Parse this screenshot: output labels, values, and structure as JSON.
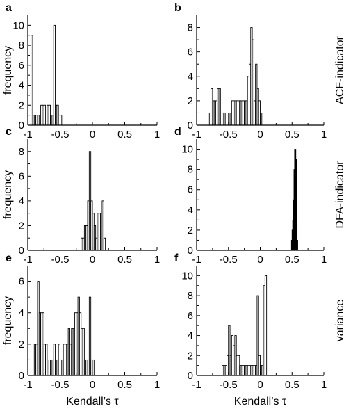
{
  "chart_data": [
    {
      "id": "a",
      "letter": "a",
      "type": "bar",
      "style": "outline",
      "xlim": [
        -1,
        1
      ],
      "ylim": [
        0,
        11
      ],
      "xticks": [
        "-1",
        "-0.5",
        "0",
        "0.5",
        "1"
      ],
      "yticks": [
        0,
        2,
        4,
        6,
        8,
        10
      ],
      "ylabel": "frequency",
      "xlabel": "",
      "row_label": "",
      "bin_width": 0.025,
      "bins": [
        {
          "x": -0.95,
          "h": 9
        },
        {
          "x": -0.925,
          "h": 1
        },
        {
          "x": -0.9,
          "h": 1
        },
        {
          "x": -0.875,
          "h": 1
        },
        {
          "x": -0.85,
          "h": 1
        },
        {
          "x": -0.8,
          "h": 2
        },
        {
          "x": -0.775,
          "h": 2
        },
        {
          "x": -0.75,
          "h": 2
        },
        {
          "x": -0.7,
          "h": 2
        },
        {
          "x": -0.675,
          "h": 2
        },
        {
          "x": -0.65,
          "h": 1
        },
        {
          "x": -0.625,
          "h": 1
        },
        {
          "x": -0.6,
          "h": 10
        },
        {
          "x": -0.575,
          "h": 2
        },
        {
          "x": -0.55,
          "h": 2
        },
        {
          "x": -0.525,
          "h": 1
        },
        {
          "x": -0.5,
          "h": 1
        }
      ]
    },
    {
      "id": "b",
      "letter": "b",
      "type": "bar",
      "style": "outline",
      "xlim": [
        -1,
        1
      ],
      "ylim": [
        0,
        9
      ],
      "xticks": [
        "-1",
        "-0.5",
        "0",
        "0.5",
        "1"
      ],
      "yticks": [
        0,
        2,
        4,
        6,
        8
      ],
      "ylabel": "",
      "xlabel": "",
      "row_label": "ACF-indicator",
      "bin_width": 0.025,
      "bins": [
        {
          "x": -0.8,
          "h": 1
        },
        {
          "x": -0.775,
          "h": 3
        },
        {
          "x": -0.75,
          "h": 2
        },
        {
          "x": -0.725,
          "h": 2
        },
        {
          "x": -0.7,
          "h": 2
        },
        {
          "x": -0.675,
          "h": 3
        },
        {
          "x": -0.65,
          "h": 3
        },
        {
          "x": -0.625,
          "h": 1
        },
        {
          "x": -0.6,
          "h": 1
        },
        {
          "x": -0.575,
          "h": 1
        },
        {
          "x": -0.55,
          "h": 1
        },
        {
          "x": -0.5,
          "h": 1
        },
        {
          "x": -0.45,
          "h": 2
        },
        {
          "x": -0.425,
          "h": 2
        },
        {
          "x": -0.4,
          "h": 2
        },
        {
          "x": -0.375,
          "h": 2
        },
        {
          "x": -0.35,
          "h": 2
        },
        {
          "x": -0.325,
          "h": 2
        },
        {
          "x": -0.3,
          "h": 2
        },
        {
          "x": -0.275,
          "h": 2
        },
        {
          "x": -0.25,
          "h": 2
        },
        {
          "x": -0.225,
          "h": 2
        },
        {
          "x": -0.2,
          "h": 4
        },
        {
          "x": -0.175,
          "h": 5
        },
        {
          "x": -0.15,
          "h": 8
        },
        {
          "x": -0.125,
          "h": 7
        },
        {
          "x": -0.1,
          "h": 2
        },
        {
          "x": -0.075,
          "h": 5
        },
        {
          "x": -0.05,
          "h": 3
        },
        {
          "x": -0.025,
          "h": 2
        },
        {
          "x": 0.0,
          "h": 1
        }
      ]
    },
    {
      "id": "c",
      "letter": "c",
      "type": "bar",
      "style": "outline",
      "xlim": [
        -1,
        1
      ],
      "ylim": [
        0,
        9
      ],
      "xticks": [
        "-1",
        "-0.5",
        "0",
        "0.5",
        "1"
      ],
      "yticks": [
        0,
        2,
        4,
        6,
        8
      ],
      "ylabel": "frequency",
      "xlabel": "",
      "row_label": "",
      "bin_width": 0.025,
      "bins": [
        {
          "x": -0.175,
          "h": 1
        },
        {
          "x": -0.15,
          "h": 1
        },
        {
          "x": -0.125,
          "h": 2
        },
        {
          "x": -0.1,
          "h": 2
        },
        {
          "x": -0.075,
          "h": 4
        },
        {
          "x": -0.05,
          "h": 8
        },
        {
          "x": -0.025,
          "h": 4
        },
        {
          "x": 0.0,
          "h": 3
        },
        {
          "x": 0.025,
          "h": 2
        },
        {
          "x": 0.05,
          "h": 1
        },
        {
          "x": 0.075,
          "h": 3
        },
        {
          "x": 0.1,
          "h": 3
        },
        {
          "x": 0.125,
          "h": 3
        },
        {
          "x": 0.15,
          "h": 4
        },
        {
          "x": 0.175,
          "h": 1
        }
      ]
    },
    {
      "id": "d",
      "letter": "d",
      "type": "bar",
      "style": "solid",
      "xlim": [
        -1,
        1
      ],
      "ylim": [
        0,
        11
      ],
      "xticks": [
        "-1",
        "-0.5",
        "0",
        "0.5",
        "1"
      ],
      "yticks": [
        0,
        2,
        4,
        6,
        8,
        10
      ],
      "ylabel": "",
      "xlabel": "",
      "row_label": "DFA-indicator",
      "bin_width": 0.01,
      "bins": [
        {
          "x": 0.49,
          "h": 1
        },
        {
          "x": 0.5,
          "h": 2
        },
        {
          "x": 0.51,
          "h": 3
        },
        {
          "x": 0.52,
          "h": 5
        },
        {
          "x": 0.53,
          "h": 8
        },
        {
          "x": 0.54,
          "h": 10
        },
        {
          "x": 0.55,
          "h": 10
        },
        {
          "x": 0.56,
          "h": 9
        },
        {
          "x": 0.57,
          "h": 3
        },
        {
          "x": 0.58,
          "h": 1
        }
      ]
    },
    {
      "id": "e",
      "letter": "e",
      "type": "bar",
      "style": "outline",
      "xlim": [
        -1,
        1
      ],
      "ylim": [
        0,
        7
      ],
      "xticks": [
        "-1",
        "-0.5",
        "0",
        "0.5",
        "1"
      ],
      "yticks": [
        0,
        2,
        4,
        6
      ],
      "ylabel": "frequency",
      "xlabel": "Kendall’s τ",
      "row_label": "",
      "bin_width": 0.025,
      "bins": [
        {
          "x": -0.9,
          "h": 2
        },
        {
          "x": -0.875,
          "h": 2
        },
        {
          "x": -0.85,
          "h": 6
        },
        {
          "x": -0.825,
          "h": 4
        },
        {
          "x": -0.8,
          "h": 4
        },
        {
          "x": -0.775,
          "h": 4
        },
        {
          "x": -0.75,
          "h": 2
        },
        {
          "x": -0.725,
          "h": 2
        },
        {
          "x": -0.7,
          "h": 1
        },
        {
          "x": -0.65,
          "h": 1
        },
        {
          "x": -0.6,
          "h": 2
        },
        {
          "x": -0.575,
          "h": 1
        },
        {
          "x": -0.55,
          "h": 1
        },
        {
          "x": -0.525,
          "h": 2
        },
        {
          "x": -0.5,
          "h": 1
        },
        {
          "x": -0.475,
          "h": 1
        },
        {
          "x": -0.45,
          "h": 2
        },
        {
          "x": -0.425,
          "h": 2
        },
        {
          "x": -0.4,
          "h": 2
        },
        {
          "x": -0.375,
          "h": 3
        },
        {
          "x": -0.35,
          "h": 2
        },
        {
          "x": -0.325,
          "h": 3
        },
        {
          "x": -0.3,
          "h": 3
        },
        {
          "x": -0.275,
          "h": 4
        },
        {
          "x": -0.25,
          "h": 4
        },
        {
          "x": -0.225,
          "h": 5
        },
        {
          "x": -0.2,
          "h": 4
        },
        {
          "x": -0.175,
          "h": 3
        },
        {
          "x": -0.15,
          "h": 3
        },
        {
          "x": -0.125,
          "h": 1
        },
        {
          "x": -0.1,
          "h": 1
        },
        {
          "x": -0.05,
          "h": 5
        },
        {
          "x": -0.025,
          "h": 1
        },
        {
          "x": 0.0,
          "h": 1
        }
      ]
    },
    {
      "id": "f",
      "letter": "f",
      "type": "bar",
      "style": "outline",
      "xlim": [
        -1,
        1
      ],
      "ylim": [
        0,
        11
      ],
      "xticks": [
        "-1",
        "-0.5",
        "0",
        "0.5",
        "1"
      ],
      "yticks": [
        0,
        2,
        4,
        6,
        8,
        10
      ],
      "ylabel": "",
      "xlabel": "Kendall’s τ",
      "row_label": "variance",
      "bin_width": 0.025,
      "bins": [
        {
          "x": -0.6,
          "h": 1
        },
        {
          "x": -0.575,
          "h": 1
        },
        {
          "x": -0.55,
          "h": 1
        },
        {
          "x": -0.525,
          "h": 2
        },
        {
          "x": -0.5,
          "h": 5
        },
        {
          "x": -0.475,
          "h": 2
        },
        {
          "x": -0.45,
          "h": 4
        },
        {
          "x": -0.425,
          "h": 3
        },
        {
          "x": -0.4,
          "h": 4
        },
        {
          "x": -0.375,
          "h": 2
        },
        {
          "x": -0.35,
          "h": 2
        },
        {
          "x": -0.325,
          "h": 1
        },
        {
          "x": -0.3,
          "h": 1
        },
        {
          "x": -0.275,
          "h": 1
        },
        {
          "x": -0.25,
          "h": 1
        },
        {
          "x": -0.225,
          "h": 1
        },
        {
          "x": -0.2,
          "h": 1
        },
        {
          "x": -0.175,
          "h": 1
        },
        {
          "x": -0.15,
          "h": 1
        },
        {
          "x": -0.125,
          "h": 1
        },
        {
          "x": -0.1,
          "h": 1
        },
        {
          "x": -0.075,
          "h": 1
        },
        {
          "x": -0.05,
          "h": 8
        },
        {
          "x": -0.025,
          "h": 2
        },
        {
          "x": 0.0,
          "h": 1
        },
        {
          "x": 0.025,
          "h": 1
        },
        {
          "x": 0.05,
          "h": 9
        },
        {
          "x": 0.075,
          "h": 10
        }
      ]
    }
  ]
}
